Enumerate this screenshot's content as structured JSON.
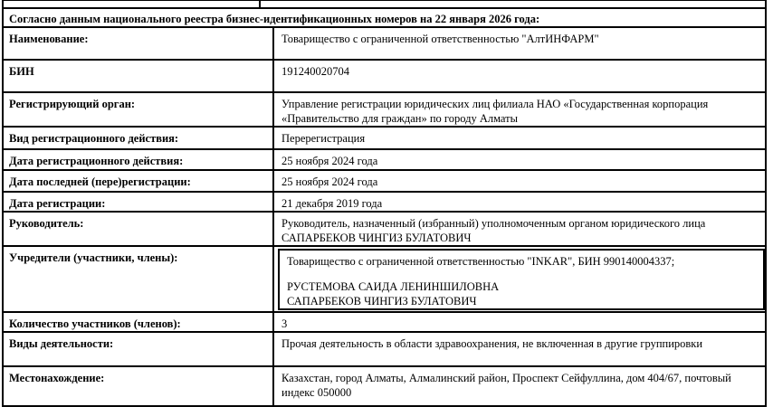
{
  "document": {
    "colors": {
      "border": "#000000",
      "text": "#000000",
      "background": "#ffffff"
    },
    "header": "Согласно данным национального реестра бизнес-идентификационных номеров на 22 января 2026 года:",
    "rows": [
      {
        "label": "Наименование:",
        "value": "Товарищество с ограниченной ответственностью \"АлтИНФАРМ\""
      },
      {
        "label": "БИН",
        "value": "191240020704"
      },
      {
        "label": "Регистрирующий орган:",
        "value": "Управление регистрации юридических лиц филиала НАО «Государственная корпорация «Правительство для граждан» по городу Алматы"
      },
      {
        "label": "Вид регистрационного действия:",
        "value": "Перерегистрация"
      },
      {
        "label": "Дата регистрационного действия:",
        "value": "25 ноября 2024 года"
      },
      {
        "label": "Дата последней (пере)регистрации:",
        "value": "25 ноября 2024 года"
      },
      {
        "label": "Дата регистрации:",
        "value": "21 декабря 2019 года"
      },
      {
        "label": "Руководитель:",
        "value_lines": [
          "Руководитель, назначенный (избранный) уполномоченным органом юридического лица",
          "САПАРБЕКОВ ЧИНГИЗ БУЛАТОВИЧ"
        ]
      },
      {
        "label": "Учредители (участники, члены):",
        "founders": [
          "Товарищество с ограниченной ответственностью \"INKAR\", БИН 990140004337;",
          "РУСТЕМОВА САИДА ЛЕНИНШИЛОВНА",
          "САПАРБЕКОВ ЧИНГИЗ БУЛАТОВИЧ"
        ]
      },
      {
        "label": "Количество участников (членов):",
        "value": "3"
      },
      {
        "label": "Виды деятельности:",
        "value": "Прочая деятельность в области здравоохранения, не включенная в другие группировки"
      },
      {
        "label": "Местонахождение:",
        "value": "Казахстан, город Алматы, Алмалинский район, Проспект Сейфуллина, дом 404/67, почтовый индекс 050000"
      }
    ]
  }
}
